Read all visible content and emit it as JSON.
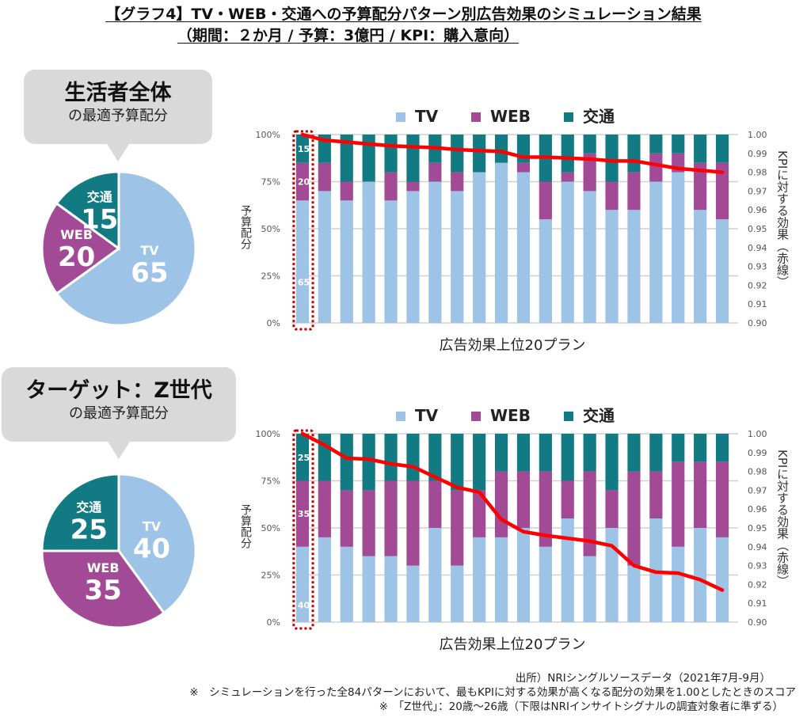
{
  "title": {
    "line1": "【グラフ4】TV・WEB・交通への予算配分パターン別広告効果のシミュレーション結果",
    "line2": "（期間：２か月 / 予算：3億円 / KPI：購入意向）"
  },
  "colors": {
    "TV": "#9dc3e6",
    "WEB": "#a34a97",
    "交通": "#127a82",
    "line": "#ff0000",
    "highlight": "#c00000"
  },
  "sections": [
    {
      "bubble_main": "生活者全体",
      "bubble_sub": "の最適予算配分"
    },
    {
      "bubble_main": "ターゲット：Z世代",
      "bubble_sub": "の最適予算配分"
    }
  ],
  "footer": {
    "source": "出所）NRIシングルソースデータ（2021年7月-9月）",
    "note1": "※　シミュレーションを行った全84パターンにおいて、最もKPIに対する効果が高くなる配分の効果を1.00としたときのスコア",
    "note2": "※　「Z世代」：20歳〜26歳（下限はNRIインサイトシグナルの調査対象者に準ずる）"
  },
  "chart_data": [
    {
      "type": "pie",
      "title": "生活者全体の最適予算配分",
      "labels": [
        "TV",
        "WEB",
        "交通"
      ],
      "values": [
        65,
        20,
        15
      ]
    },
    {
      "type": "bar",
      "stacked": true,
      "title": "生活者全体",
      "legend": [
        "TV",
        "WEB",
        "交通"
      ],
      "legend_position": "top",
      "xlabel": "広告効果上位20プラン",
      "ylabel": "予算配分",
      "y2label": "KPIに対する効果（赤線）",
      "yticks": [
        "0%",
        "25%",
        "50%",
        "75%",
        "100%"
      ],
      "y2ticks": [
        "0.90",
        "0.91",
        "0.92",
        "0.93",
        "0.94",
        "0.95",
        "0.96",
        "0.97",
        "0.98",
        "0.99",
        "1.00"
      ],
      "ylim": [
        0,
        100
      ],
      "y2lim": [
        0.9,
        1.0
      ],
      "grid": true,
      "highlight_index": 0,
      "first_bar_labels": [
        "65",
        "20",
        "15"
      ],
      "series": [
        {
          "name": "TV",
          "values": [
            65,
            70,
            65,
            75,
            65,
            70,
            75,
            70,
            80,
            85,
            80,
            55,
            75,
            70,
            60,
            60,
            75,
            80,
            60,
            55
          ]
        },
        {
          "name": "WEB",
          "values": [
            20,
            15,
            10,
            0,
            15,
            5,
            10,
            10,
            0,
            0,
            5,
            20,
            5,
            20,
            15,
            20,
            15,
            10,
            25,
            30
          ]
        },
        {
          "name": "交通",
          "values": [
            15,
            15,
            25,
            25,
            20,
            25,
            15,
            20,
            20,
            15,
            15,
            25,
            20,
            10,
            25,
            20,
            10,
            10,
            15,
            15
          ]
        }
      ],
      "line": {
        "name": "KPIに対する効果",
        "values": [
          1.0,
          0.997,
          0.996,
          0.995,
          0.994,
          0.9935,
          0.993,
          0.992,
          0.9915,
          0.991,
          0.988,
          0.988,
          0.9875,
          0.987,
          0.986,
          0.986,
          0.984,
          0.982,
          0.981,
          0.98
        ]
      }
    },
    {
      "type": "pie",
      "title": "ターゲット：Z世代の最適予算配分",
      "labels": [
        "TV",
        "WEB",
        "交通"
      ],
      "values": [
        40,
        35,
        25
      ]
    },
    {
      "type": "bar",
      "stacked": true,
      "title": "ターゲット：Z世代",
      "legend": [
        "TV",
        "WEB",
        "交通"
      ],
      "legend_position": "top",
      "xlabel": "広告効果上位20プラン",
      "ylabel": "予算配分",
      "y2label": "KPIに対する効果（赤線）",
      "yticks": [
        "0%",
        "25%",
        "50%",
        "75%",
        "100%"
      ],
      "y2ticks": [
        "0.90",
        "0.91",
        "0.92",
        "0.93",
        "0.94",
        "0.95",
        "0.96",
        "0.97",
        "0.98",
        "0.99",
        "1.00"
      ],
      "ylim": [
        0,
        100
      ],
      "y2lim": [
        0.9,
        1.0
      ],
      "grid": true,
      "highlight_index": 0,
      "first_bar_labels": [
        "40",
        "35",
        "25"
      ],
      "series": [
        {
          "name": "TV",
          "values": [
            40,
            45,
            40,
            35,
            35,
            30,
            50,
            30,
            45,
            45,
            50,
            40,
            55,
            35,
            50,
            30,
            55,
            40,
            50,
            45
          ]
        },
        {
          "name": "WEB",
          "values": [
            35,
            30,
            30,
            35,
            40,
            45,
            25,
            40,
            25,
            35,
            30,
            40,
            20,
            45,
            20,
            50,
            25,
            45,
            35,
            40
          ]
        },
        {
          "name": "交通",
          "values": [
            25,
            25,
            30,
            30,
            25,
            25,
            25,
            30,
            30,
            20,
            20,
            20,
            25,
            20,
            30,
            20,
            20,
            15,
            15,
            15
          ]
        }
      ],
      "line": {
        "name": "KPIに対する効果",
        "values": [
          1.0,
          0.994,
          0.987,
          0.9865,
          0.984,
          0.9825,
          0.977,
          0.9715,
          0.969,
          0.9545,
          0.948,
          0.946,
          0.9445,
          0.943,
          0.9405,
          0.93,
          0.9265,
          0.926,
          0.9225,
          0.917
        ]
      }
    }
  ]
}
